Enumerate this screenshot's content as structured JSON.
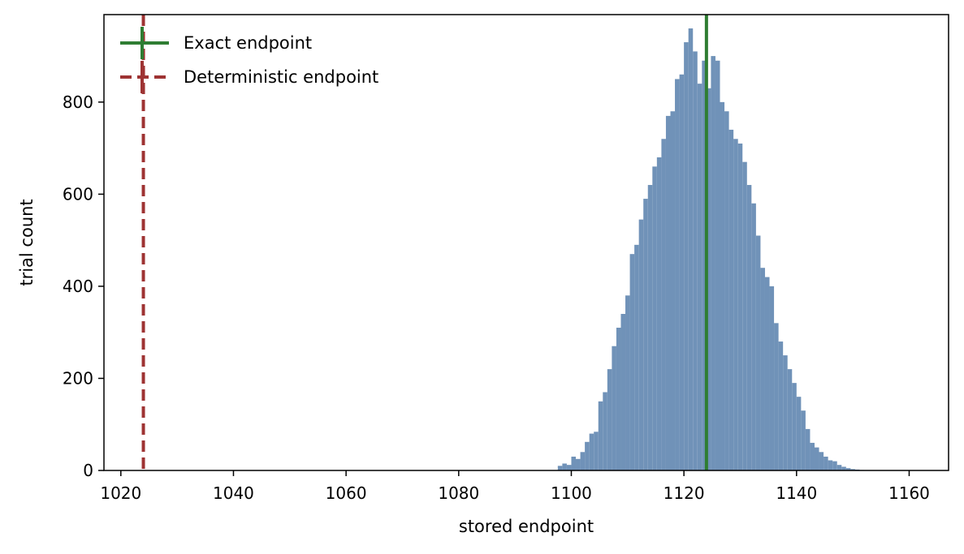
{
  "chart_data": {
    "type": "bar",
    "title": "",
    "xlabel": "stored endpoint",
    "ylabel": "trial count",
    "xlim": [
      1017,
      1167
    ],
    "ylim": [
      0,
      990
    ],
    "xticks": [
      1020,
      1040,
      1060,
      1080,
      1100,
      1120,
      1140,
      1160
    ],
    "yticks": [
      0,
      200,
      400,
      600,
      800
    ],
    "bin_width": 0.8,
    "bins_start": [
      1097.6,
      1098.4,
      1099.2,
      1100.0,
      1100.8,
      1101.6,
      1102.4,
      1103.2,
      1104.0,
      1104.8,
      1105.6,
      1106.4,
      1107.2,
      1108.0,
      1108.8,
      1109.6,
      1110.4,
      1111.2,
      1112.0,
      1112.8,
      1113.6,
      1114.4,
      1115.2,
      1116.0,
      1116.8,
      1117.6,
      1118.4,
      1119.2,
      1120.0,
      1120.8,
      1121.6,
      1122.4,
      1123.2,
      1124.0,
      1124.8,
      1125.6,
      1126.4,
      1127.2,
      1128.0,
      1128.8,
      1129.6,
      1130.4,
      1131.2,
      1132.0,
      1132.8,
      1133.6,
      1134.4,
      1135.2,
      1136.0,
      1136.8,
      1137.6,
      1138.4,
      1139.2,
      1140.0,
      1140.8,
      1141.6,
      1142.4,
      1143.2,
      1144.0,
      1144.8,
      1145.6,
      1146.4,
      1147.2,
      1148.0,
      1148.8,
      1149.6,
      1150.4,
      1151.2
    ],
    "counts": [
      10,
      15,
      12,
      30,
      25,
      40,
      62,
      80,
      84,
      150,
      170,
      220,
      270,
      310,
      340,
      380,
      470,
      490,
      545,
      590,
      620,
      660,
      680,
      720,
      770,
      780,
      850,
      860,
      930,
      960,
      910,
      840,
      890,
      830,
      900,
      890,
      800,
      780,
      740,
      720,
      710,
      670,
      620,
      580,
      510,
      440,
      420,
      400,
      320,
      280,
      250,
      220,
      190,
      160,
      130,
      90,
      60,
      50,
      40,
      30,
      22,
      20,
      12,
      8,
      5,
      3,
      2,
      1
    ],
    "bar_color": "#7092b8",
    "vlines": [
      {
        "name": "Exact endpoint",
        "x": 1124,
        "color": "#2e7d32",
        "style": "solid"
      },
      {
        "name": "Deterministic endpoint",
        "x": 1024,
        "color": "#9e3333",
        "style": "dashed"
      }
    ],
    "legend_position": "upper-left",
    "grid": false
  }
}
